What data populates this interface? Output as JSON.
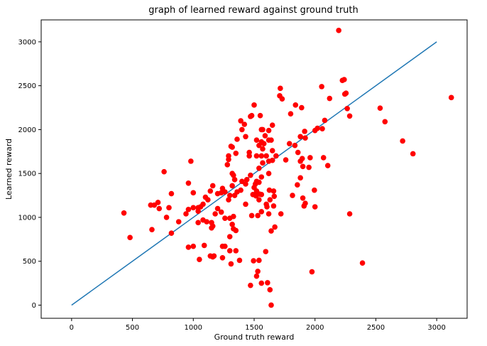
{
  "chart_data": {
    "type": "scatter",
    "title": "graph of learned reward against ground truth",
    "xlabel": "Ground truth reward",
    "ylabel": "Learned reward",
    "xlim": [
      -250,
      3250
    ],
    "ylim": [
      -150,
      3250
    ],
    "xticks": [
      0,
      500,
      1000,
      1500,
      2000,
      2500,
      3000
    ],
    "yticks": [
      0,
      500,
      1000,
      1500,
      2000,
      2500,
      3000
    ],
    "grid": false,
    "line": {
      "x": [
        0,
        3000
      ],
      "y": [
        0,
        3000
      ],
      "color": "#1f77b4"
    },
    "point_color": "#ff0000",
    "points": [
      [
        2195,
        3130
      ],
      [
        3120,
        2365
      ],
      [
        2240,
        2570
      ],
      [
        2225,
        2560
      ],
      [
        2255,
        2415
      ],
      [
        2245,
        2405
      ],
      [
        2055,
        2490
      ],
      [
        2120,
        2355
      ],
      [
        2265,
        2240
      ],
      [
        2285,
        2155
      ],
      [
        2535,
        2245
      ],
      [
        2575,
        2090
      ],
      [
        2720,
        1870
      ],
      [
        2805,
        1725
      ],
      [
        2285,
        1040
      ],
      [
        2390,
        480
      ],
      [
        1975,
        380
      ],
      [
        1640,
        0
      ],
      [
        1630,
        175
      ],
      [
        1610,
        255
      ],
      [
        1560,
        250
      ],
      [
        1470,
        225
      ],
      [
        1520,
        330
      ],
      [
        1530,
        385
      ],
      [
        1595,
        610
      ],
      [
        1495,
        505
      ],
      [
        1540,
        510
      ],
      [
        1640,
        845
      ],
      [
        1670,
        890
      ],
      [
        1720,
        1040
      ],
      [
        1760,
        1655
      ],
      [
        1790,
        1840
      ],
      [
        1715,
        2470
      ],
      [
        1710,
        2385
      ],
      [
        1730,
        2350
      ],
      [
        1800,
        2180
      ],
      [
        1840,
        2280
      ],
      [
        1890,
        2250
      ],
      [
        1915,
        1980
      ],
      [
        1880,
        1920
      ],
      [
        1920,
        1905
      ],
      [
        1960,
        1680
      ],
      [
        1895,
        1670
      ],
      [
        1860,
        1740
      ],
      [
        1880,
        1640
      ],
      [
        1835,
        1820
      ],
      [
        1950,
        1570
      ],
      [
        1900,
        1580
      ],
      [
        1880,
        1450
      ],
      [
        1855,
        1370
      ],
      [
        1815,
        1250
      ],
      [
        1900,
        1220
      ],
      [
        1920,
        1160
      ],
      [
        1910,
        1130
      ],
      [
        2000,
        1120
      ],
      [
        1995,
        1310
      ],
      [
        2000,
        1990
      ],
      [
        2020,
        2015
      ],
      [
        2060,
        2010
      ],
      [
        2080,
        2105
      ],
      [
        2070,
        1680
      ],
      [
        2105,
        1590
      ],
      [
        1570,
        2000
      ],
      [
        1560,
        2000
      ],
      [
        1590,
        1930
      ],
      [
        1570,
        1780
      ],
      [
        1620,
        1880
      ],
      [
        1640,
        1880
      ],
      [
        1620,
        1990
      ],
      [
        1650,
        2050
      ],
      [
        1650,
        1760
      ],
      [
        1680,
        1700
      ],
      [
        1650,
        1650
      ],
      [
        1600,
        1700
      ],
      [
        1620,
        1640
      ],
      [
        1570,
        1620
      ],
      [
        1540,
        1560
      ],
      [
        1560,
        1460
      ],
      [
        1520,
        1410
      ],
      [
        1540,
        1400
      ],
      [
        1510,
        1380
      ],
      [
        1500,
        1340
      ],
      [
        1490,
        1260
      ],
      [
        1515,
        1245
      ],
      [
        1545,
        1265
      ],
      [
        1560,
        1260
      ],
      [
        1600,
        1150
      ],
      [
        1605,
        1120
      ],
      [
        1625,
        1310
      ],
      [
        1660,
        1300
      ],
      [
        1665,
        1240
      ],
      [
        1630,
        1200
      ],
      [
        1660,
        1130
      ],
      [
        1620,
        1040
      ],
      [
        1560,
        1065
      ],
      [
        1530,
        1020
      ],
      [
        1480,
        1020
      ],
      [
        1470,
        1480
      ],
      [
        1460,
        1700
      ],
      [
        1460,
        1740
      ],
      [
        1440,
        1430
      ],
      [
        1430,
        1380
      ],
      [
        1400,
        1410
      ],
      [
        1390,
        1310
      ],
      [
        1400,
        2000
      ],
      [
        1390,
        2100
      ],
      [
        1420,
        2060
      ],
      [
        1430,
        1920
      ],
      [
        1470,
        2150
      ],
      [
        1480,
        2160
      ],
      [
        1500,
        2280
      ],
      [
        1550,
        2160
      ],
      [
        1520,
        1880
      ],
      [
        1540,
        1820
      ],
      [
        1580,
        1840
      ],
      [
        1560,
        1860
      ],
      [
        1560,
        1700
      ],
      [
        1520,
        1700
      ],
      [
        1350,
        1730
      ],
      [
        1360,
        1890
      ],
      [
        1310,
        1810
      ],
      [
        1320,
        1800
      ],
      [
        1290,
        1700
      ],
      [
        1290,
        1660
      ],
      [
        1280,
        1600
      ],
      [
        1320,
        1500
      ],
      [
        1330,
        1480
      ],
      [
        1340,
        1430
      ],
      [
        1320,
        1360
      ],
      [
        1360,
        1290
      ],
      [
        1340,
        1250
      ],
      [
        1300,
        1250
      ],
      [
        1290,
        1200
      ],
      [
        1260,
        1290
      ],
      [
        1240,
        1330
      ],
      [
        1230,
        1280
      ],
      [
        1200,
        1270
      ],
      [
        1160,
        1360
      ],
      [
        1140,
        1300
      ],
      [
        1120,
        1200
      ],
      [
        1100,
        1230
      ],
      [
        1080,
        1150
      ],
      [
        1060,
        1120
      ],
      [
        1040,
        1110
      ],
      [
        1000,
        1110
      ],
      [
        1040,
        1070
      ],
      [
        1000,
        1280
      ],
      [
        960,
        1390
      ],
      [
        960,
        1090
      ],
      [
        980,
        1640
      ],
      [
        760,
        1520
      ],
      [
        820,
        1270
      ],
      [
        800,
        1110
      ],
      [
        710,
        1170
      ],
      [
        680,
        1140
      ],
      [
        650,
        1140
      ],
      [
        720,
        1100
      ],
      [
        780,
        1000
      ],
      [
        660,
        860
      ],
      [
        820,
        820
      ],
      [
        880,
        950
      ],
      [
        940,
        1040
      ],
      [
        1040,
        940
      ],
      [
        1080,
        970
      ],
      [
        1110,
        950
      ],
      [
        1150,
        940
      ],
      [
        1160,
        900
      ],
      [
        1150,
        880
      ],
      [
        1180,
        1040
      ],
      [
        1200,
        1100
      ],
      [
        1230,
        1060
      ],
      [
        1260,
        990
      ],
      [
        1300,
        990
      ],
      [
        1320,
        920
      ],
      [
        1330,
        870
      ],
      [
        1350,
        850
      ],
      [
        1300,
        780
      ],
      [
        1300,
        620
      ],
      [
        1350,
        620
      ],
      [
        1380,
        510
      ],
      [
        1310,
        470
      ],
      [
        1240,
        540
      ],
      [
        1240,
        670
      ],
      [
        1260,
        670
      ],
      [
        1170,
        560
      ],
      [
        1140,
        560
      ],
      [
        1160,
        550
      ],
      [
        1050,
        520
      ],
      [
        1090,
        680
      ],
      [
        1000,
        670
      ],
      [
        960,
        660
      ],
      [
        1330,
        1010
      ],
      [
        1430,
        1150
      ],
      [
        1520,
        1300
      ],
      [
        1620,
        1500
      ],
      [
        1540,
        1200
      ],
      [
        430,
        1050
      ],
      [
        480,
        770
      ]
    ]
  }
}
